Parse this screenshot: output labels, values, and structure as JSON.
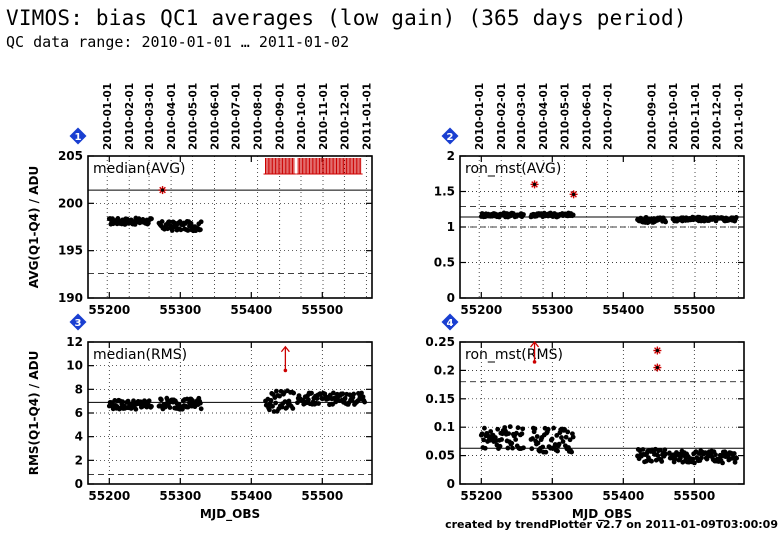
{
  "page": {
    "title": "VIMOS: bias QC1 averages (low gain) (365 days period)",
    "subtitle": "QC data range: 2010-01-01 … 2011-01-02",
    "footer": "created by trendPlotter v2.7 on 2011-01-09T03:00:09"
  },
  "colors": {
    "points": "#000000",
    "outlier": "#cc0000",
    "badge": "#1a3fd1",
    "refline": "#000000"
  },
  "chart_data": [
    {
      "id": "1",
      "type": "scatter",
      "label": "median(AVG)",
      "ylabel": "AVG(Q1-Q4) / ADU",
      "xlabel": "",
      "xlim": [
        55170,
        55570
      ],
      "ylim": [
        190,
        205
      ],
      "x_ticks": [
        55200,
        55300,
        55400,
        55500
      ],
      "y_ticks": [
        190,
        195,
        200,
        205
      ],
      "show_x_tick_labels": true,
      "date_ticks": [
        {
          "mjd": 55197,
          "label": "2010-01-01"
        },
        {
          "mjd": 55228,
          "label": "2010-02-01"
        },
        {
          "mjd": 55256,
          "label": "2010-03-01"
        },
        {
          "mjd": 55287,
          "label": "2010-04-01"
        },
        {
          "mjd": 55317,
          "label": "2010-05-01"
        },
        {
          "mjd": 55348,
          "label": "2010-06-01"
        },
        {
          "mjd": 55378,
          "label": "2010-07-01"
        },
        {
          "mjd": 55409,
          "label": "2010-08-01"
        },
        {
          "mjd": 55440,
          "label": "2010-09-01"
        },
        {
          "mjd": 55470,
          "label": "2010-10-01"
        },
        {
          "mjd": 55501,
          "label": "2010-11-01"
        },
        {
          "mjd": 55531,
          "label": "2010-12-01"
        },
        {
          "mjd": 55562,
          "label": "2011-01-01"
        }
      ],
      "ref_line": 201.4,
      "limit_lines": [
        192.6
      ],
      "segments": [
        {
          "x0": 55200,
          "x1": 55260,
          "y": 198.1,
          "jitter": 0.35
        },
        {
          "x0": 55270,
          "x1": 55330,
          "y": 197.6,
          "jitter": 0.5
        }
      ],
      "stars": [
        {
          "x": 55275,
          "y": 201.4
        }
      ],
      "off_scale_up": [
        {
          "x0": 55420,
          "x1": 55555,
          "step": 2,
          "gap": [
            55460,
            55465
          ]
        }
      ],
      "arrows": []
    },
    {
      "id": "2",
      "type": "scatter",
      "label": "ron_mst(AVG)",
      "ylabel": "",
      "xlabel": "",
      "xlim": [
        55170,
        55570
      ],
      "ylim": [
        0,
        2
      ],
      "x_ticks": [
        55200,
        55300,
        55400,
        55500
      ],
      "y_ticks": [
        0,
        0.5,
        1,
        1.5,
        2
      ],
      "show_x_tick_labels": true,
      "date_ticks": [
        {
          "mjd": 55197,
          "label": "2010-01-01"
        },
        {
          "mjd": 55228,
          "label": "2010-02-01"
        },
        {
          "mjd": 55256,
          "label": "2010-03-01"
        },
        {
          "mjd": 55287,
          "label": "2010-04-01"
        },
        {
          "mjd": 55317,
          "label": "2010-05-01"
        },
        {
          "mjd": 55348,
          "label": "2010-06-01"
        },
        {
          "mjd": 55378,
          "label": "2010-07-01"
        },
        {
          "mjd": 55440,
          "label": "2010-09-01"
        },
        {
          "mjd": 55470,
          "label": "2010-10-01"
        },
        {
          "mjd": 55501,
          "label": "2010-11-01"
        },
        {
          "mjd": 55531,
          "label": "2010-12-01"
        },
        {
          "mjd": 55562,
          "label": "2011-01-01"
        }
      ],
      "ref_line": 1.14,
      "limit_lines": [
        1.0,
        1.29
      ],
      "segments": [
        {
          "x0": 55200,
          "x1": 55260,
          "y": 1.17,
          "jitter": 0.03
        },
        {
          "x0": 55270,
          "x1": 55330,
          "y": 1.17,
          "jitter": 0.03
        },
        {
          "x0": 55420,
          "x1": 55460,
          "y": 1.1,
          "jitter": 0.04
        },
        {
          "x0": 55470,
          "x1": 55560,
          "y": 1.11,
          "jitter": 0.03
        }
      ],
      "stars": [
        {
          "x": 55275,
          "y": 1.6
        },
        {
          "x": 55330,
          "y": 1.46
        }
      ],
      "off_scale_up": [],
      "arrows": []
    },
    {
      "id": "3",
      "type": "scatter",
      "label": "median(RMS)",
      "ylabel": "RMS(Q1-Q4) / ADU",
      "xlabel": "MJD_OBS",
      "xlim": [
        55170,
        55570
      ],
      "ylim": [
        0,
        12
      ],
      "x_ticks": [
        55200,
        55300,
        55400,
        55500
      ],
      "y_ticks": [
        0,
        2,
        4,
        6,
        8,
        10,
        12
      ],
      "show_x_tick_labels": true,
      "date_ticks": [],
      "ref_line": 6.9,
      "limit_lines": [
        0.8
      ],
      "segments": [
        {
          "x0": 55200,
          "x1": 55260,
          "y": 6.7,
          "jitter": 0.4
        },
        {
          "x0": 55270,
          "x1": 55330,
          "y": 6.8,
          "jitter": 0.5
        },
        {
          "x0": 55420,
          "x1": 55460,
          "y": 7.0,
          "jitter": 0.9
        },
        {
          "x0": 55465,
          "x1": 55560,
          "y": 7.2,
          "jitter": 0.5
        }
      ],
      "stars": [],
      "off_scale_up": [],
      "arrows": [
        {
          "x": 55448,
          "y_top": 11.6,
          "y_bottom": 9.6
        }
      ]
    },
    {
      "id": "4",
      "type": "scatter",
      "label": "ron_mst(RMS)",
      "ylabel": "",
      "xlabel": "MJD_OBS",
      "xlim": [
        55170,
        55570
      ],
      "ylim": [
        0,
        0.25
      ],
      "x_ticks": [
        55200,
        55300,
        55400,
        55500
      ],
      "y_ticks": [
        0,
        0.05,
        0.1,
        0.15,
        0.2,
        0.25
      ],
      "show_x_tick_labels": true,
      "date_ticks": [],
      "ref_line": 0.063,
      "limit_lines": [
        0.18
      ],
      "segments": [
        {
          "x0": 55200,
          "x1": 55260,
          "y": 0.082,
          "jitter": 0.02
        },
        {
          "x0": 55270,
          "x1": 55330,
          "y": 0.078,
          "jitter": 0.022
        },
        {
          "x0": 55420,
          "x1": 55460,
          "y": 0.05,
          "jitter": 0.012
        },
        {
          "x0": 55465,
          "x1": 55560,
          "y": 0.048,
          "jitter": 0.011
        }
      ],
      "stars": [
        {
          "x": 55448,
          "y": 0.235
        },
        {
          "x": 55448,
          "y": 0.205
        }
      ],
      "off_scale_up": [],
      "arrows": [
        {
          "x": 55275,
          "y_top": 0.25,
          "y_bottom": 0.215
        }
      ]
    }
  ]
}
